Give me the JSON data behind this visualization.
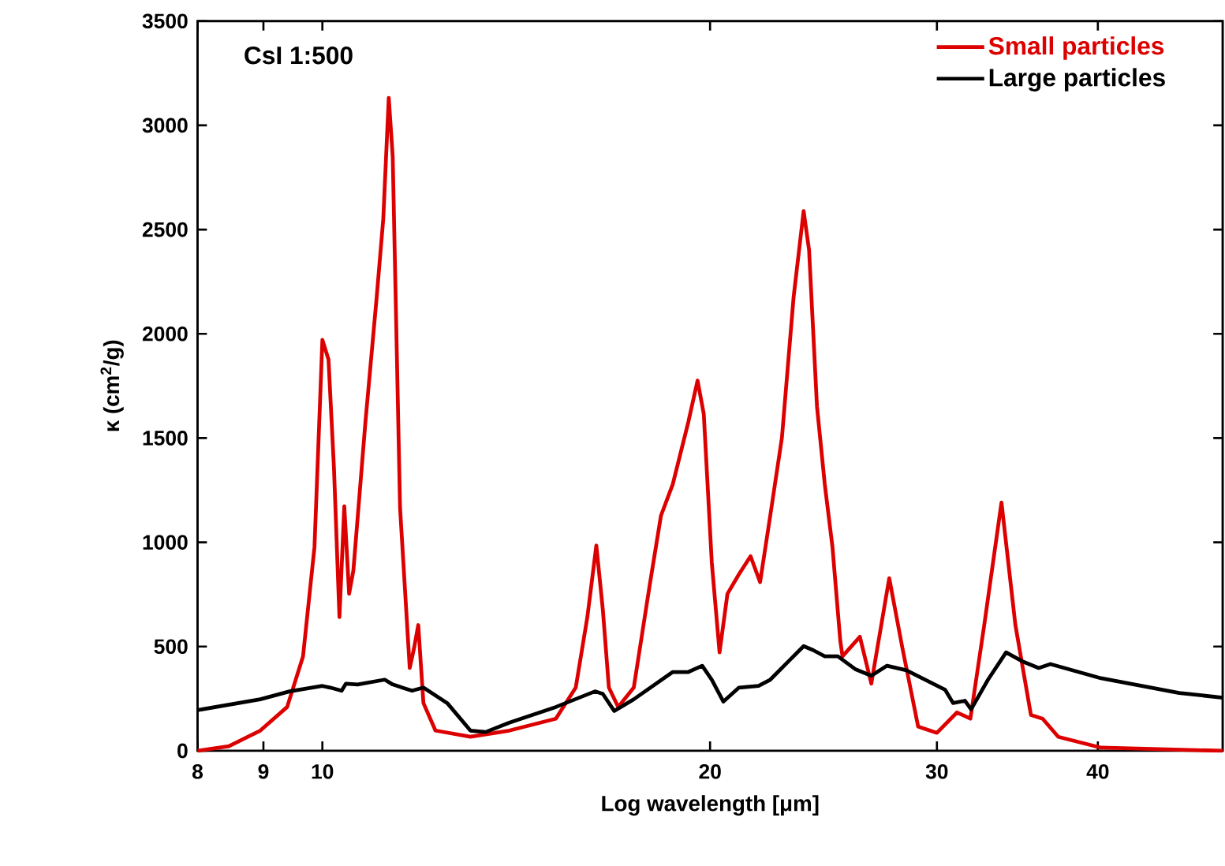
{
  "chart_data": {
    "type": "line",
    "xlabel": "Log wavelength [μm]",
    "ylabel": "κ (cm$^{2}$/g)",
    "log": "x",
    "xlim": [
      8,
      50
    ],
    "ylim": [
      0,
      3500
    ],
    "xticks": [
      8,
      9,
      10,
      20,
      30,
      40
    ],
    "yticks": [
      0,
      500,
      1000,
      1500,
      2000,
      2500,
      3000,
      3500
    ],
    "legend": "top right",
    "annotations": [
      "CsI 1:500"
    ],
    "series": [
      {
        "name": "Small particles",
        "color": "#dd0000",
        "x": [
          8,
          8.46,
          8.95,
          9.39,
          9.66,
          9.86,
          10.0,
          10.11,
          10.21,
          10.31,
          10.4,
          10.49,
          10.57,
          10.8,
          11.02,
          11.15,
          11.26,
          11.34,
          11.49,
          11.69,
          11.78,
          11.87,
          11.98,
          12.24,
          13.03,
          13.97,
          15.18,
          15.73,
          16.06,
          16.32,
          16.51,
          16.69,
          16.97,
          17.45,
          17.95,
          18.32,
          18.71,
          19.24,
          19.56,
          19.78,
          20.06,
          20.34,
          20.63,
          21.06,
          21.5,
          21.87,
          22.27,
          22.74,
          23.22,
          23.64,
          23.87,
          24.21,
          24.55,
          24.89,
          25.24,
          25.34,
          26.14,
          26.68,
          27.55,
          28.21,
          29.01,
          30.0,
          31.1,
          31.85,
          32.65,
          33.67,
          34.52,
          35.49,
          36.24,
          37.27,
          40.23,
          50
        ],
        "values": [
          0,
          22,
          97,
          210,
          453,
          978,
          1971,
          1877,
          1353,
          641,
          1173,
          753,
          865,
          1577,
          2177,
          2551,
          3132,
          2851,
          1165,
          397,
          491,
          603,
          229,
          97,
          67,
          97,
          154,
          303,
          641,
          985,
          678,
          303,
          210,
          303,
          791,
          1128,
          1278,
          1577,
          1776,
          1615,
          903,
          472,
          753,
          847,
          933,
          809,
          1128,
          1502,
          2177,
          2589,
          2402,
          1652,
          1278,
          978,
          528,
          453,
          547,
          322,
          828,
          491,
          116,
          86,
          184,
          154,
          603,
          1191,
          603,
          172,
          154,
          67,
          15,
          0
        ]
      },
      {
        "name": "Large particles",
        "color": "#000000",
        "x": [
          8,
          8.95,
          9.43,
          10.0,
          10.14,
          10.35,
          10.43,
          10.65,
          11.18,
          11.34,
          11.74,
          11.98,
          12.5,
          13.03,
          13.39,
          13.97,
          15.18,
          16.28,
          16.51,
          16.85,
          17.45,
          18.71,
          19.24,
          19.72,
          20.06,
          20.48,
          21.06,
          21.81,
          22.27,
          23.06,
          23.64,
          24.04,
          24.55,
          25.13,
          25.95,
          26.68,
          27.44,
          28.41,
          30.45,
          30.88,
          31.54,
          31.89,
          32.87,
          33.95,
          35.01,
          35.99,
          36.75,
          40.23,
          46.26,
          50
        ],
        "values": [
          195,
          247,
          285,
          311,
          303,
          288,
          322,
          318,
          341,
          318,
          288,
          303,
          229,
          97,
          90,
          135,
          210,
          285,
          273,
          191,
          247,
          378,
          378,
          408,
          341,
          236,
          303,
          311,
          341,
          435,
          502,
          483,
          453,
          453,
          390,
          360,
          408,
          386,
          292,
          229,
          240,
          199,
          341,
          472,
          427,
          397,
          416,
          348,
          277,
          255
        ]
      }
    ]
  }
}
